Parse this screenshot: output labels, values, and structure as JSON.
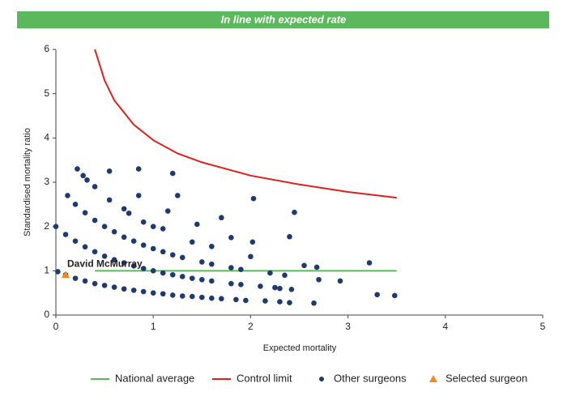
{
  "chart_data": {
    "type": "scatter",
    "title": "In line with expected rate",
    "x_label": "Expected mortality",
    "y_label": "Standardised mortality ratio",
    "xlim": [
      0,
      5
    ],
    "ylim": [
      0,
      6
    ],
    "xticks": [
      0,
      1,
      2,
      3,
      4,
      5
    ],
    "yticks": [
      0,
      1,
      2,
      3,
      4,
      5,
      6
    ],
    "annotation": "David McMurray",
    "series": [
      {
        "name": "National average",
        "type": "line",
        "color": "#5cb85c",
        "x": [
          0.4,
          3.5
        ],
        "values": [
          1,
          1
        ]
      },
      {
        "name": "Control limit",
        "type": "line",
        "color": "#e02020",
        "x": [
          0.4,
          0.5,
          0.6,
          0.8,
          1.0,
          1.25,
          1.5,
          2.0,
          2.5,
          3.0,
          3.5
        ],
        "values": [
          6.0,
          5.3,
          4.85,
          4.3,
          3.95,
          3.65,
          3.45,
          3.15,
          2.95,
          2.78,
          2.65
        ]
      },
      {
        "name": "Other surgeons",
        "type": "scatter",
        "color": "#1f3a6e",
        "x": [
          0.02,
          0.1,
          0.2,
          0.3,
          0.4,
          0.5,
          0.6,
          0.7,
          0.8,
          0.9,
          1.0,
          1.1,
          1.2,
          1.3,
          1.4,
          1.5,
          1.6,
          1.7,
          0,
          0.1,
          0.2,
          0.3,
          0.4,
          0.5,
          0.6,
          0.7,
          0.8,
          0.9,
          1.0,
          1.1,
          1.2,
          1.3,
          1.4,
          1.5,
          1.6,
          1.8,
          1.9,
          0.2,
          0.3,
          0.4,
          0.5,
          0.6,
          0.7,
          0.8,
          0.9,
          1.0,
          1.1,
          1.2,
          1.3,
          1.5,
          1.6,
          1.8,
          1.9,
          0.55,
          0.7,
          0.75,
          0.9,
          1.0,
          1.1,
          0.22,
          0.28,
          0.32,
          0.4,
          0.55,
          0.85,
          1.2,
          0.85,
          1.25,
          0.12,
          1.7,
          1.45,
          1.8,
          2.03,
          2.45,
          2.4,
          2.02,
          2.0,
          2.55,
          2.68,
          2.7,
          2.92,
          3.22,
          3.3,
          3.48,
          2.2,
          2.25,
          2.35,
          2.42,
          2.1,
          2.3,
          2.15,
          2.3,
          2.4,
          2.65,
          1.85,
          1.95,
          1.6,
          1.4,
          1.15
        ],
        "values": [
          0.98,
          0.91,
          0.83,
          0.77,
          0.71,
          0.67,
          0.63,
          0.59,
          0.56,
          0.53,
          0.5,
          0.48,
          0.45,
          0.43,
          0.42,
          0.4,
          0.38,
          0.37,
          2.0,
          1.82,
          1.67,
          1.54,
          1.43,
          1.33,
          1.25,
          1.18,
          1.11,
          1.05,
          1.0,
          0.95,
          0.91,
          0.87,
          0.83,
          0.8,
          0.77,
          0.71,
          0.69,
          2.5,
          2.31,
          2.14,
          2.0,
          1.88,
          1.76,
          1.67,
          1.58,
          1.5,
          1.43,
          1.36,
          1.3,
          1.2,
          1.15,
          1.07,
          1.03,
          2.6,
          2.4,
          2.3,
          2.1,
          2.0,
          1.95,
          3.3,
          3.15,
          3.05,
          2.9,
          3.25,
          3.3,
          3.2,
          2.7,
          2.7,
          2.7,
          2.2,
          2.05,
          1.75,
          2.63,
          2.32,
          1.77,
          1.65,
          1.32,
          1.12,
          1.08,
          0.8,
          0.77,
          1.18,
          0.46,
          0.44,
          0.95,
          0.62,
          0.9,
          0.58,
          0.65,
          0.6,
          0.32,
          0.3,
          0.28,
          0.27,
          0.35,
          0.33,
          1.55,
          1.65,
          2.35
        ]
      },
      {
        "name": "Selected surgeon",
        "type": "triangle",
        "color": "#f08a24",
        "x": [
          0.1
        ],
        "values": [
          0.91
        ]
      }
    ]
  }
}
